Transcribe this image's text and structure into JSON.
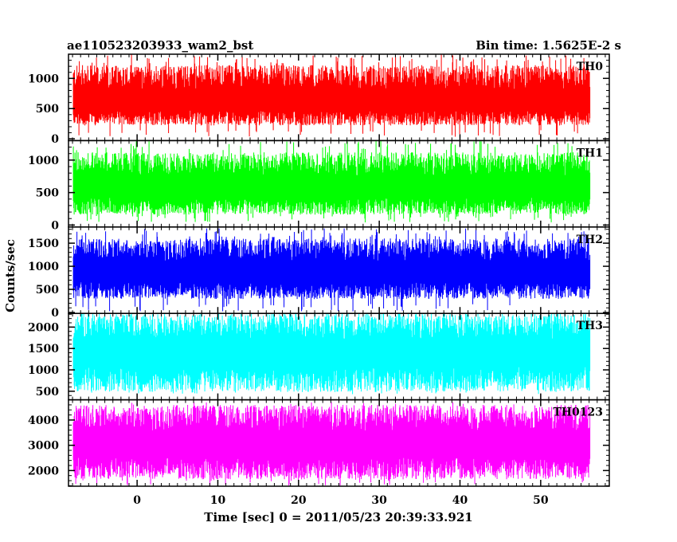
{
  "header": {
    "left_title": "ae110523203933_wam2_bst",
    "right_title": "Bin time: 1.5625E-2 s"
  },
  "chart_data": {
    "type": "line",
    "title": "ae110523203933_wam2_bst",
    "subtitle": "Bin time: 1.5625E-2 s",
    "xlabel": "Time [sec] 0 = 2011/05/23 20:39:33.921",
    "ylabel": "Counts/sec",
    "xlim": [
      -8.5,
      58.5
    ],
    "x_data_range": [
      -7.9,
      56.1
    ],
    "bin_time": 0.015625,
    "x_ticks": [
      0,
      10,
      20,
      30,
      40,
      50
    ],
    "grid": false,
    "legend": "none",
    "panels": [
      {
        "name": "TH0",
        "color": "#ff0000",
        "ylim": [
          -30,
          1400
        ],
        "y_ticks": [
          0,
          500,
          1000
        ],
        "baseline": 600,
        "noise_low": 380,
        "noise_high": 620,
        "peak_max": 1400,
        "trough_min": 30
      },
      {
        "name": "TH1",
        "color": "#00ff00",
        "ylim": [
          -30,
          1300
        ],
        "y_ticks": [
          0,
          500,
          1000
        ],
        "baseline": 560,
        "noise_low": 400,
        "noise_high": 560,
        "peak_max": 1300,
        "trough_min": 40
      },
      {
        "name": "TH2",
        "color": "#0000ff",
        "ylim": [
          -20,
          1850
        ],
        "y_ticks": [
          0,
          500,
          1000,
          1500
        ],
        "baseline": 850,
        "noise_low": 560,
        "noise_high": 750,
        "peak_max": 1820,
        "trough_min": 20
      },
      {
        "name": "TH3",
        "color": "#00ffff",
        "ylim": [
          300,
          2320
        ],
        "y_ticks": [
          500,
          1000,
          1500,
          2000
        ],
        "baseline": 1380,
        "noise_low": 900,
        "noise_high": 950,
        "peak_max": 2300,
        "trough_min": 430
      },
      {
        "name": "TH0123",
        "color": "#ff00ff",
        "ylim": [
          1380,
          4800
        ],
        "y_ticks": [
          2000,
          3000,
          4000
        ],
        "baseline": 3000,
        "noise_low": 1350,
        "noise_high": 1600,
        "peak_max": 4700,
        "trough_min": 1400
      }
    ]
  }
}
